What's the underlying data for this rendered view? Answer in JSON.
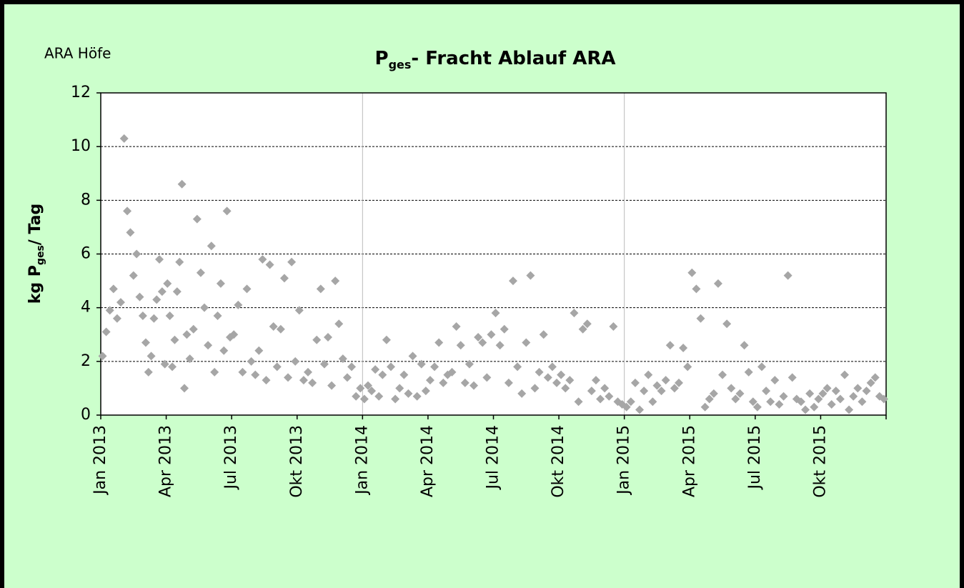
{
  "chart_data": {
    "type": "scatter",
    "title": {
      "main": "P",
      "sub": "ges",
      "rest": "- Fracht Ablauf ARA"
    },
    "annotation": "ARA Höfe",
    "ylabel": {
      "main": "kg P",
      "sub": "ges",
      "rest": "/ Tag"
    },
    "color": "#a6a6a6",
    "grid": true,
    "xlim": [
      "2013-01",
      "2016-01"
    ],
    "xticks": [
      {
        "value": "2013-01",
        "label": "Jan 2013"
      },
      {
        "value": "2013-04",
        "label": "Apr 2013"
      },
      {
        "value": "2013-07",
        "label": "Jul 2013"
      },
      {
        "value": "2013-10",
        "label": "Okt 2013"
      },
      {
        "value": "2014-01",
        "label": "Jan 2014"
      },
      {
        "value": "2014-04",
        "label": "Apr 2014"
      },
      {
        "value": "2014-07",
        "label": "Jul 2014"
      },
      {
        "value": "2014-10",
        "label": "Okt 2014"
      },
      {
        "value": "2015-01",
        "label": "Jan 2015"
      },
      {
        "value": "2015-04",
        "label": "Apr 2015"
      },
      {
        "value": "2015-07",
        "label": "Jul 2015"
      },
      {
        "value": "2015-10",
        "label": "Okt 2015"
      }
    ],
    "ylim": [
      0,
      12
    ],
    "yticks": [
      0,
      2,
      4,
      6,
      8,
      10,
      12
    ],
    "x": [
      "2013-01",
      "2013-01",
      "2013-01",
      "2013-01",
      "2013-01",
      "2013-01",
      "2013-02",
      "2013-02",
      "2013-02",
      "2013-02",
      "2013-02",
      "2013-02",
      "2013-02",
      "2013-03",
      "2013-03",
      "2013-03",
      "2013-03",
      "2013-03",
      "2013-03",
      "2013-03",
      "2013-03",
      "2013-04",
      "2013-04",
      "2013-04",
      "2013-04",
      "2013-04",
      "2013-04",
      "2013-04",
      "2013-04",
      "2013-04",
      "2013-05",
      "2013-05",
      "2013-05",
      "2013-05",
      "2013-05",
      "2013-05",
      "2013-06",
      "2013-06",
      "2013-06",
      "2013-06",
      "2013-06",
      "2013-06",
      "2013-06",
      "2013-07",
      "2013-07",
      "2013-07",
      "2013-07",
      "2013-07",
      "2013-08",
      "2013-08",
      "2013-08",
      "2013-08",
      "2013-08",
      "2013-08",
      "2013-09",
      "2013-09",
      "2013-09",
      "2013-09",
      "2013-09",
      "2013-09",
      "2013-10",
      "2013-10",
      "2013-10",
      "2013-10",
      "2013-10",
      "2013-11",
      "2013-11",
      "2013-11",
      "2013-11",
      "2013-11",
      "2013-11",
      "2013-12",
      "2013-12",
      "2013-12",
      "2013-12",
      "2013-12",
      "2014-01",
      "2014-01",
      "2014-01",
      "2014-01",
      "2014-01",
      "2014-01",
      "2014-02",
      "2014-02",
      "2014-02",
      "2014-02",
      "2014-02",
      "2014-03",
      "2014-03",
      "2014-03",
      "2014-03",
      "2014-03",
      "2014-04",
      "2014-04",
      "2014-04",
      "2014-04",
      "2014-04",
      "2014-05",
      "2014-05",
      "2014-05",
      "2014-05",
      "2014-05",
      "2014-06",
      "2014-06",
      "2014-06",
      "2014-06",
      "2014-06",
      "2014-07",
      "2014-07",
      "2014-07",
      "2014-07",
      "2014-07",
      "2014-08",
      "2014-08",
      "2014-08",
      "2014-08",
      "2014-08",
      "2014-09",
      "2014-09",
      "2014-09",
      "2014-09",
      "2014-09",
      "2014-10",
      "2014-10",
      "2014-10",
      "2014-10",
      "2014-10",
      "2014-11",
      "2014-11",
      "2014-11",
      "2014-11",
      "2014-11",
      "2014-12",
      "2014-12",
      "2014-12",
      "2014-12",
      "2014-12",
      "2015-01",
      "2015-01",
      "2015-01",
      "2015-01",
      "2015-01",
      "2015-02",
      "2015-02",
      "2015-02",
      "2015-02",
      "2015-02",
      "2015-03",
      "2015-03",
      "2015-03",
      "2015-03",
      "2015-03",
      "2015-04",
      "2015-04",
      "2015-04",
      "2015-04",
      "2015-04",
      "2015-05",
      "2015-05",
      "2015-05",
      "2015-05",
      "2015-05",
      "2015-06",
      "2015-06",
      "2015-06",
      "2015-06",
      "2015-06",
      "2015-07",
      "2015-07",
      "2015-07",
      "2015-07",
      "2015-07",
      "2015-08",
      "2015-08",
      "2015-08",
      "2015-08",
      "2015-08",
      "2015-09",
      "2015-09",
      "2015-09",
      "2015-09",
      "2015-09",
      "2015-10",
      "2015-10",
      "2015-10",
      "2015-10",
      "2015-10",
      "2015-11",
      "2015-11",
      "2015-11",
      "2015-11",
      "2015-11",
      "2015-12",
      "2015-12",
      "2015-12",
      "2015-12",
      "2015-12"
    ],
    "values": [
      2.2,
      3.1,
      3.9,
      4.7,
      3.6,
      4.2,
      10.3,
      7.6,
      6.8,
      5.2,
      6.0,
      4.4,
      3.7,
      2.7,
      1.6,
      2.2,
      3.6,
      4.3,
      5.8,
      4.6,
      1.9,
      4.9,
      3.7,
      1.8,
      2.8,
      4.6,
      5.7,
      8.6,
      1.0,
      3.0,
      2.1,
      3.2,
      7.3,
      5.3,
      4.0,
      2.6,
      6.3,
      1.6,
      3.7,
      4.9,
      2.4,
      7.6,
      2.9,
      3.0,
      4.1,
      1.6,
      4.7,
      2.0,
      1.5,
      2.4,
      5.8,
      1.3,
      5.6,
      3.3,
      1.8,
      3.2,
      5.1,
      1.4,
      5.7,
      2.0,
      3.9,
      1.3,
      1.6,
      1.2,
      2.8,
      4.7,
      1.9,
      2.9,
      1.1,
      5.0,
      3.4,
      2.1,
      1.4,
      1.8,
      0.7,
      1.0,
      0.6,
      1.1,
      0.9,
      1.7,
      0.7,
      1.5,
      2.8,
      1.8,
      0.6,
      1.0,
      1.5,
      0.8,
      2.2,
      0.7,
      1.9,
      0.9,
      1.3,
      1.8,
      2.7,
      1.2,
      1.5,
      1.6,
      3.3,
      2.6,
      1.2,
      1.9,
      1.1,
      2.9,
      2.7,
      1.4,
      3.0,
      3.8,
      2.6,
      3.2,
      1.2,
      5.0,
      1.8,
      0.8,
      2.7,
      5.2,
      1.0,
      1.6,
      3.0,
      1.4,
      1.8,
      1.2,
      1.5,
      1.0,
      1.3,
      3.8,
      0.5,
      3.2,
      3.4,
      0.9,
      1.3,
      0.6,
      1.0,
      0.7,
      3.3,
      0.5,
      0.4,
      0.3,
      0.5,
      1.2,
      0.2,
      0.9,
      1.5,
      0.5,
      1.1,
      0.9,
      1.3,
      2.6,
      1.0,
      1.2,
      2.5,
      1.8,
      5.3,
      4.7,
      3.6,
      0.3,
      0.6,
      0.8,
      4.9,
      1.5,
      3.4,
      1.0,
      0.6,
      0.8,
      2.6,
      1.6,
      0.5,
      0.3,
      1.8,
      0.9,
      0.5,
      1.3,
      0.4,
      0.7,
      5.2,
      1.4,
      0.6,
      0.5,
      0.2,
      0.8,
      0.3,
      0.6,
      0.8,
      1.0,
      0.4,
      0.9,
      0.6,
      1.5,
      0.2,
      0.7,
      1.0,
      0.5,
      0.9,
      1.2,
      1.4,
      0.7,
      0.6
    ]
  }
}
